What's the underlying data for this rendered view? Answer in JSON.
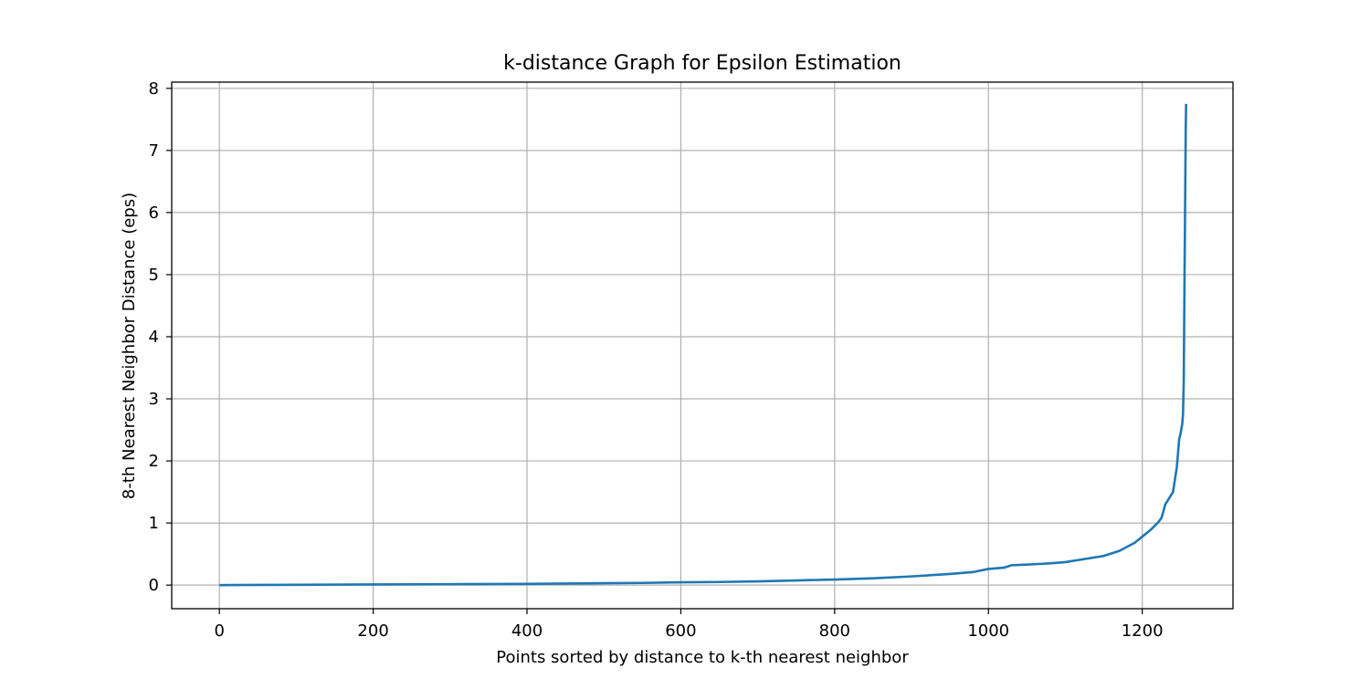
{
  "chart_data": {
    "type": "line",
    "title": "k-distance Graph for Epsilon Estimation",
    "xlabel": "Points sorted by distance to k-th nearest neighbor",
    "ylabel": "8-th Nearest Neighbor Distance (eps)",
    "xlim": [
      -62,
      1318
    ],
    "ylim": [
      -0.38,
      8.1
    ],
    "xticks": [
      0,
      200,
      400,
      600,
      800,
      1000,
      1200
    ],
    "yticks": [
      0,
      1,
      2,
      3,
      4,
      5,
      6,
      7,
      8
    ],
    "grid": true,
    "line_color": "#1f77b4",
    "series": [
      {
        "x": [
          0,
          100,
          200,
          300,
          400,
          500,
          550,
          600,
          650,
          700,
          750,
          800,
          850,
          900,
          950,
          980,
          1000,
          1020,
          1030,
          1050,
          1080,
          1100,
          1120,
          1150,
          1170,
          1190,
          1200,
          1210,
          1220,
          1225,
          1230,
          1235,
          1240,
          1245,
          1248,
          1250,
          1252,
          1253,
          1254,
          1255,
          1256,
          1256.5,
          1257
        ],
        "y": [
          0.0,
          0.005,
          0.01,
          0.015,
          0.02,
          0.03,
          0.035,
          0.045,
          0.05,
          0.06,
          0.075,
          0.09,
          0.11,
          0.14,
          0.18,
          0.21,
          0.26,
          0.28,
          0.32,
          0.33,
          0.35,
          0.37,
          0.41,
          0.47,
          0.55,
          0.68,
          0.78,
          0.88,
          1.0,
          1.08,
          1.3,
          1.4,
          1.5,
          1.9,
          2.35,
          2.45,
          2.6,
          2.75,
          3.3,
          5.0,
          6.5,
          7.3,
          7.75
        ]
      }
    ]
  }
}
